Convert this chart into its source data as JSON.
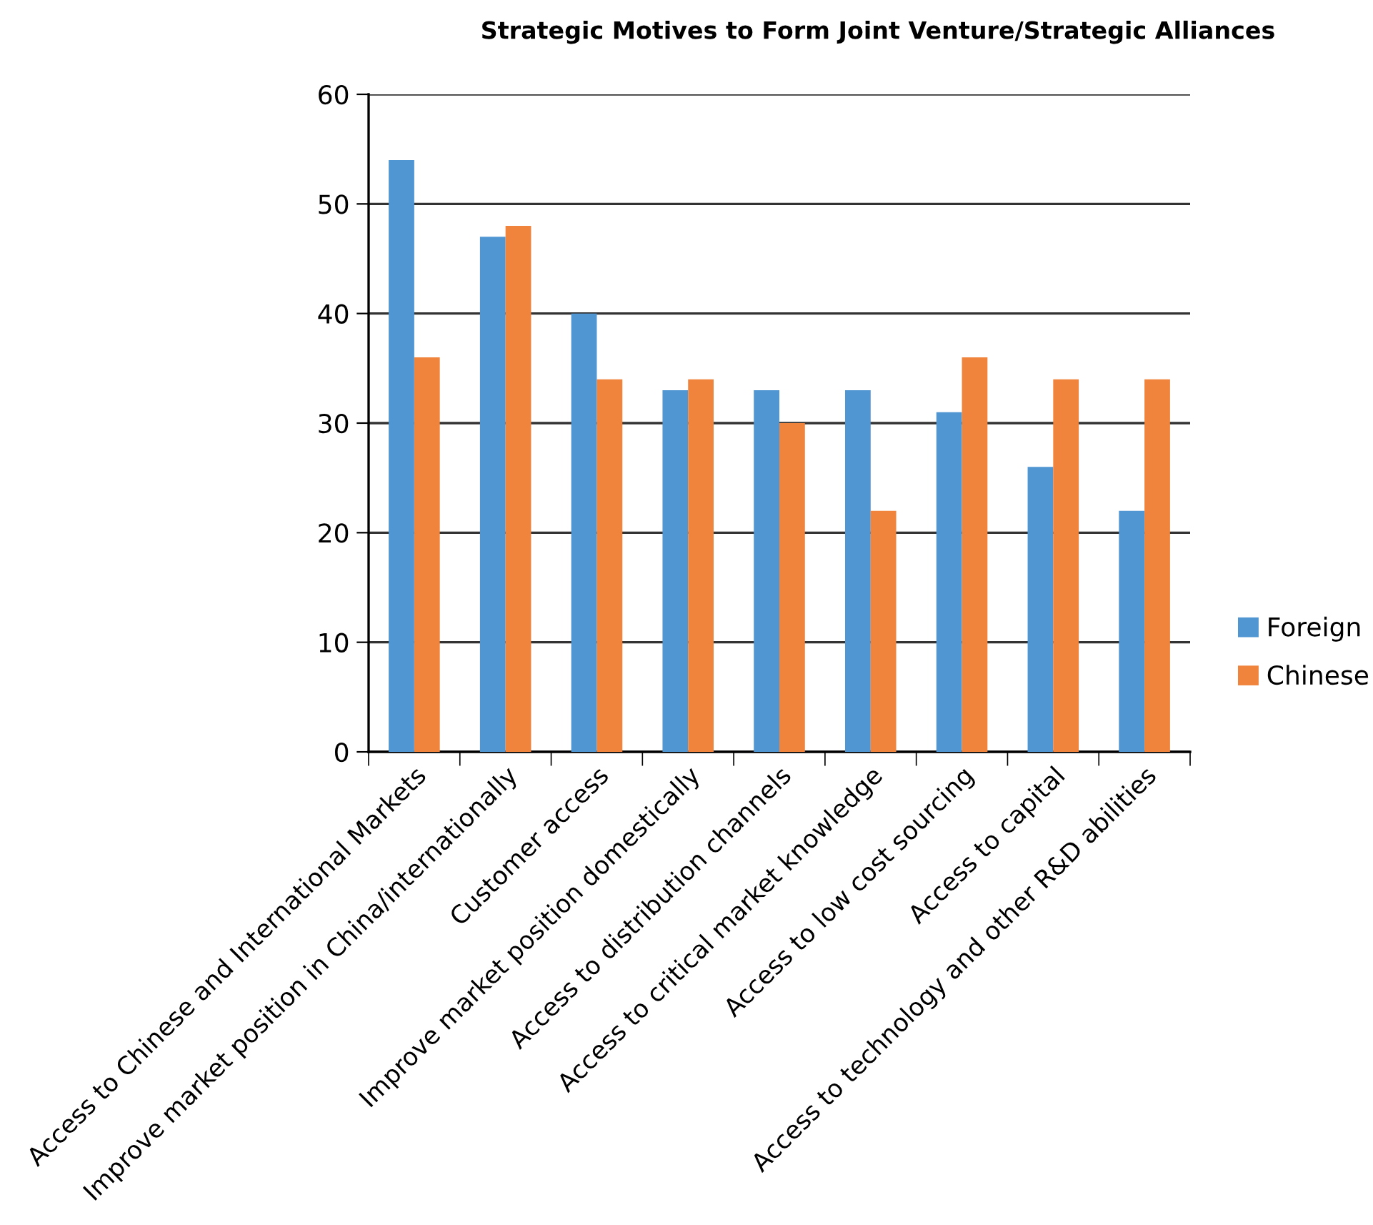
{
  "chart_data": {
    "type": "bar",
    "title": "Strategic Motives to Form Joint Venture/Strategic Alliances",
    "categories": [
      "Access to Chinese and International Markets",
      "Improve market position in China/internationally",
      "Customer access",
      "Improve market position domestically",
      "Access to distribution channels",
      "Access to critical market knowledge",
      "Access to low cost sourcing",
      "Access to capital",
      "Access to technology and other R&D abilities"
    ],
    "series": [
      {
        "name": "Foreign",
        "color": "#5096d2",
        "values": [
          54,
          47,
          40,
          33,
          33,
          33,
          31,
          26,
          22
        ]
      },
      {
        "name": "Chinese",
        "color": "#f0843c",
        "values": [
          36,
          48,
          34,
          34,
          30,
          22,
          36,
          34,
          34
        ]
      }
    ],
    "ylim": [
      0,
      60
    ],
    "yticks": [
      0,
      10,
      20,
      30,
      40,
      50,
      60
    ],
    "grid": "y",
    "legend": "right"
  }
}
